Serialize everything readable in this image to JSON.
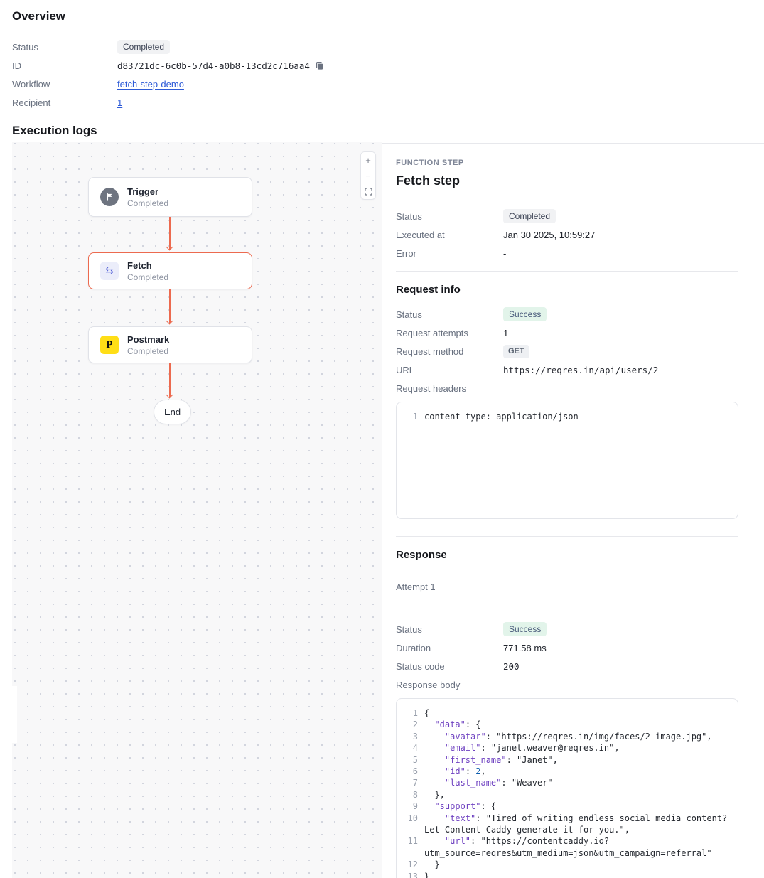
{
  "overview": {
    "title": "Overview",
    "status_label": "Status",
    "status_value": "Completed",
    "id_label": "ID",
    "id_value": "d83721dc-6c0b-57d4-a0b8-13cd2c716aa4",
    "workflow_label": "Workflow",
    "workflow_value": "fetch-step-demo",
    "recipient_label": "Recipient",
    "recipient_value": "1"
  },
  "execution_logs": {
    "title": "Execution logs"
  },
  "canvas": {
    "controls": {
      "zoom_in": "+",
      "zoom_out": "−"
    },
    "nodes": {
      "trigger": {
        "title": "Trigger",
        "subtitle": "Completed"
      },
      "fetch": {
        "title": "Fetch",
        "subtitle": "Completed"
      },
      "postmark": {
        "title": "Postmark",
        "subtitle": "Completed",
        "icon_letter": "P"
      }
    },
    "swap_glyph": "⇆",
    "end_label": "End"
  },
  "panel": {
    "kicker": "FUNCTION STEP",
    "title": "Fetch step",
    "status_label": "Status",
    "status_value": "Completed",
    "executed_label": "Executed at",
    "executed_value": "Jan 30 2025, 10:59:27",
    "error_label": "Error",
    "error_value": "-",
    "request_info": {
      "title": "Request info",
      "status_label": "Status",
      "status_value": "Success",
      "attempts_label": "Request attempts",
      "attempts_value": "1",
      "method_label": "Request method",
      "method_value": "GET",
      "url_label": "URL",
      "url_value": "https://reqres.in/api/users/2",
      "headers_label": "Request headers",
      "headers_code": [
        "content-type: application/json"
      ]
    },
    "response": {
      "title": "Response",
      "attempt_label": "Attempt 1",
      "status_label": "Status",
      "status_value": "Success",
      "duration_label": "Duration",
      "duration_value": "771.58 ms",
      "status_code_label": "Status code",
      "status_code_value": "200",
      "body_label": "Response body",
      "body_code": [
        "{",
        "  \"data\": {",
        "    \"avatar\": \"https://reqres.in/img/faces/2-image.jpg\",",
        "    \"email\": \"janet.weaver@reqres.in\",",
        "    \"first_name\": \"Janet\",",
        "    \"id\": 2,",
        "    \"last_name\": \"Weaver\"",
        "  },",
        "  \"support\": {",
        "    \"text\": \"Tired of writing endless social media content? Let Content Caddy generate it for you.\",",
        "    \"url\": \"https://contentcaddy.io?utm_source=reqres&utm_medium=json&utm_campaign=referral\"",
        "  }",
        "}"
      ]
    }
  },
  "colors": {
    "accent": "#ec6a4f",
    "link": "#2e5bd7",
    "success_badge_bg": "#e2f4ea",
    "badge_bg": "#f1f2f4",
    "postmark_yellow": "#ffde16",
    "json_key": "#6f42c1",
    "json_number": "#0b5cad"
  }
}
